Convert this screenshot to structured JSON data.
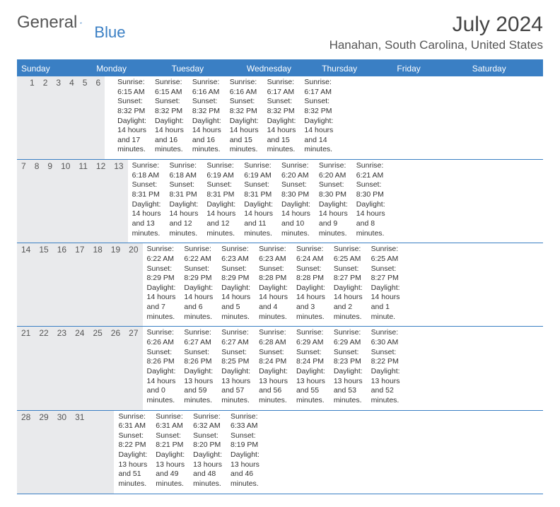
{
  "logo": {
    "text1": "General",
    "text2": "Blue"
  },
  "title": "July 2024",
  "location": "Hanahan, South Carolina, United States",
  "header_bg": "#3a7fc4",
  "daynum_bg": "#e9eaec",
  "weekdays": [
    "Sunday",
    "Monday",
    "Tuesday",
    "Wednesday",
    "Thursday",
    "Friday",
    "Saturday"
  ],
  "weeks": [
    [
      {
        "n": "",
        "lines": []
      },
      {
        "n": "1",
        "lines": [
          "Sunrise: 6:15 AM",
          "Sunset: 8:32 PM",
          "Daylight: 14 hours",
          "and 17 minutes."
        ]
      },
      {
        "n": "2",
        "lines": [
          "Sunrise: 6:15 AM",
          "Sunset: 8:32 PM",
          "Daylight: 14 hours",
          "and 16 minutes."
        ]
      },
      {
        "n": "3",
        "lines": [
          "Sunrise: 6:16 AM",
          "Sunset: 8:32 PM",
          "Daylight: 14 hours",
          "and 16 minutes."
        ]
      },
      {
        "n": "4",
        "lines": [
          "Sunrise: 6:16 AM",
          "Sunset: 8:32 PM",
          "Daylight: 14 hours",
          "and 15 minutes."
        ]
      },
      {
        "n": "5",
        "lines": [
          "Sunrise: 6:17 AM",
          "Sunset: 8:32 PM",
          "Daylight: 14 hours",
          "and 15 minutes."
        ]
      },
      {
        "n": "6",
        "lines": [
          "Sunrise: 6:17 AM",
          "Sunset: 8:32 PM",
          "Daylight: 14 hours",
          "and 14 minutes."
        ]
      }
    ],
    [
      {
        "n": "7",
        "lines": [
          "Sunrise: 6:18 AM",
          "Sunset: 8:31 PM",
          "Daylight: 14 hours",
          "and 13 minutes."
        ]
      },
      {
        "n": "8",
        "lines": [
          "Sunrise: 6:18 AM",
          "Sunset: 8:31 PM",
          "Daylight: 14 hours",
          "and 12 minutes."
        ]
      },
      {
        "n": "9",
        "lines": [
          "Sunrise: 6:19 AM",
          "Sunset: 8:31 PM",
          "Daylight: 14 hours",
          "and 12 minutes."
        ]
      },
      {
        "n": "10",
        "lines": [
          "Sunrise: 6:19 AM",
          "Sunset: 8:31 PM",
          "Daylight: 14 hours",
          "and 11 minutes."
        ]
      },
      {
        "n": "11",
        "lines": [
          "Sunrise: 6:20 AM",
          "Sunset: 8:30 PM",
          "Daylight: 14 hours",
          "and 10 minutes."
        ]
      },
      {
        "n": "12",
        "lines": [
          "Sunrise: 6:20 AM",
          "Sunset: 8:30 PM",
          "Daylight: 14 hours",
          "and 9 minutes."
        ]
      },
      {
        "n": "13",
        "lines": [
          "Sunrise: 6:21 AM",
          "Sunset: 8:30 PM",
          "Daylight: 14 hours",
          "and 8 minutes."
        ]
      }
    ],
    [
      {
        "n": "14",
        "lines": [
          "Sunrise: 6:22 AM",
          "Sunset: 8:29 PM",
          "Daylight: 14 hours",
          "and 7 minutes."
        ]
      },
      {
        "n": "15",
        "lines": [
          "Sunrise: 6:22 AM",
          "Sunset: 8:29 PM",
          "Daylight: 14 hours",
          "and 6 minutes."
        ]
      },
      {
        "n": "16",
        "lines": [
          "Sunrise: 6:23 AM",
          "Sunset: 8:29 PM",
          "Daylight: 14 hours",
          "and 5 minutes."
        ]
      },
      {
        "n": "17",
        "lines": [
          "Sunrise: 6:23 AM",
          "Sunset: 8:28 PM",
          "Daylight: 14 hours",
          "and 4 minutes."
        ]
      },
      {
        "n": "18",
        "lines": [
          "Sunrise: 6:24 AM",
          "Sunset: 8:28 PM",
          "Daylight: 14 hours",
          "and 3 minutes."
        ]
      },
      {
        "n": "19",
        "lines": [
          "Sunrise: 6:25 AM",
          "Sunset: 8:27 PM",
          "Daylight: 14 hours",
          "and 2 minutes."
        ]
      },
      {
        "n": "20",
        "lines": [
          "Sunrise: 6:25 AM",
          "Sunset: 8:27 PM",
          "Daylight: 14 hours",
          "and 1 minute."
        ]
      }
    ],
    [
      {
        "n": "21",
        "lines": [
          "Sunrise: 6:26 AM",
          "Sunset: 8:26 PM",
          "Daylight: 14 hours",
          "and 0 minutes."
        ]
      },
      {
        "n": "22",
        "lines": [
          "Sunrise: 6:27 AM",
          "Sunset: 8:26 PM",
          "Daylight: 13 hours",
          "and 59 minutes."
        ]
      },
      {
        "n": "23",
        "lines": [
          "Sunrise: 6:27 AM",
          "Sunset: 8:25 PM",
          "Daylight: 13 hours",
          "and 57 minutes."
        ]
      },
      {
        "n": "24",
        "lines": [
          "Sunrise: 6:28 AM",
          "Sunset: 8:24 PM",
          "Daylight: 13 hours",
          "and 56 minutes."
        ]
      },
      {
        "n": "25",
        "lines": [
          "Sunrise: 6:29 AM",
          "Sunset: 8:24 PM",
          "Daylight: 13 hours",
          "and 55 minutes."
        ]
      },
      {
        "n": "26",
        "lines": [
          "Sunrise: 6:29 AM",
          "Sunset: 8:23 PM",
          "Daylight: 13 hours",
          "and 53 minutes."
        ]
      },
      {
        "n": "27",
        "lines": [
          "Sunrise: 6:30 AM",
          "Sunset: 8:22 PM",
          "Daylight: 13 hours",
          "and 52 minutes."
        ]
      }
    ],
    [
      {
        "n": "28",
        "lines": [
          "Sunrise: 6:31 AM",
          "Sunset: 8:22 PM",
          "Daylight: 13 hours",
          "and 51 minutes."
        ]
      },
      {
        "n": "29",
        "lines": [
          "Sunrise: 6:31 AM",
          "Sunset: 8:21 PM",
          "Daylight: 13 hours",
          "and 49 minutes."
        ]
      },
      {
        "n": "30",
        "lines": [
          "Sunrise: 6:32 AM",
          "Sunset: 8:20 PM",
          "Daylight: 13 hours",
          "and 48 minutes."
        ]
      },
      {
        "n": "31",
        "lines": [
          "Sunrise: 6:33 AM",
          "Sunset: 8:19 PM",
          "Daylight: 13 hours",
          "and 46 minutes."
        ]
      },
      {
        "n": "",
        "lines": []
      },
      {
        "n": "",
        "lines": []
      },
      {
        "n": "",
        "lines": []
      }
    ]
  ]
}
